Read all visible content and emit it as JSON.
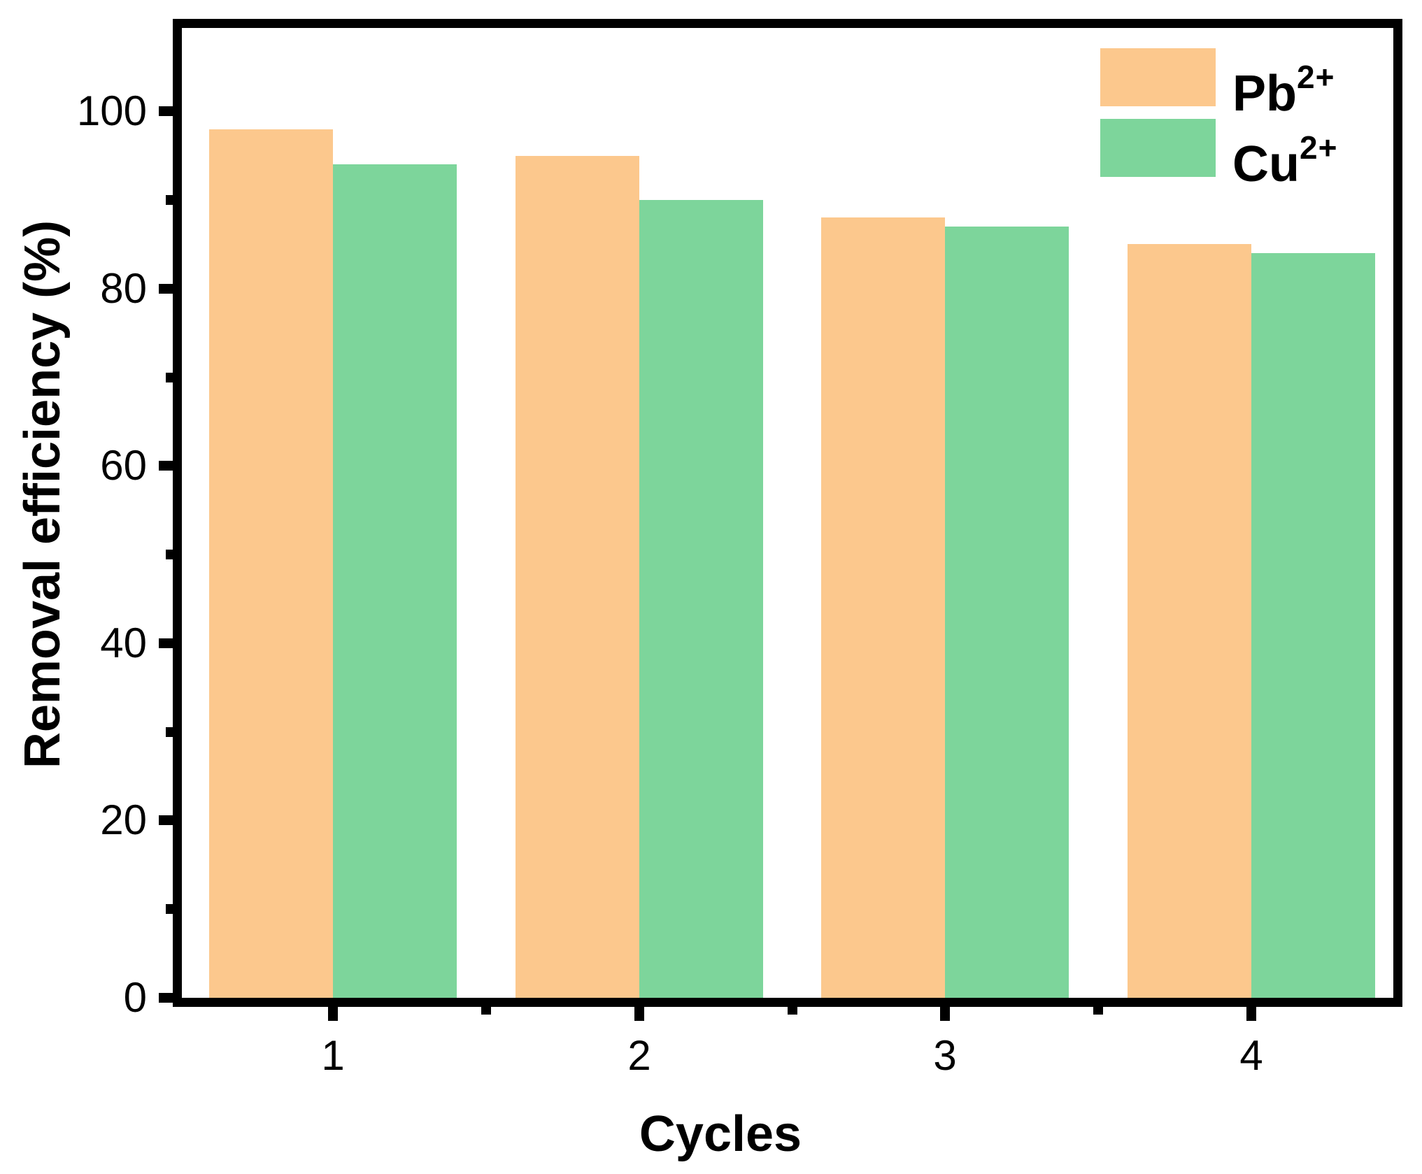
{
  "figure": {
    "background": "#ffffff",
    "axis_color": "#000000",
    "text_color": "#000000"
  },
  "chart_data": {
    "type": "bar",
    "title": "",
    "xlabel": "Cycles",
    "ylabel": "Removal efficiency (%)",
    "categories": [
      "1",
      "2",
      "3",
      "4"
    ],
    "series": [
      {
        "name": "pb2",
        "label": "Pb",
        "superscript": "2+",
        "color": "#FCC88D",
        "values": [
          98,
          95,
          88,
          85
        ]
      },
      {
        "name": "cu2",
        "label": "Cu",
        "superscript": "2+",
        "color": "#7DD59B",
        "values": [
          94,
          90,
          87,
          84
        ]
      }
    ],
    "ylim": [
      0,
      109.4
    ],
    "yticks_major": [
      0,
      20,
      40,
      60,
      80,
      100
    ],
    "ytick_labels": [
      "0",
      "20",
      "40",
      "60",
      "80",
      "100"
    ],
    "yticks_minor": [
      10,
      30,
      50,
      70,
      90
    ],
    "xticks_major_positions": [
      1,
      2,
      3,
      4
    ],
    "xticks_minor_positions": [
      1.5,
      2.5,
      3.5
    ],
    "legend_position": "top-right",
    "grid": false
  }
}
